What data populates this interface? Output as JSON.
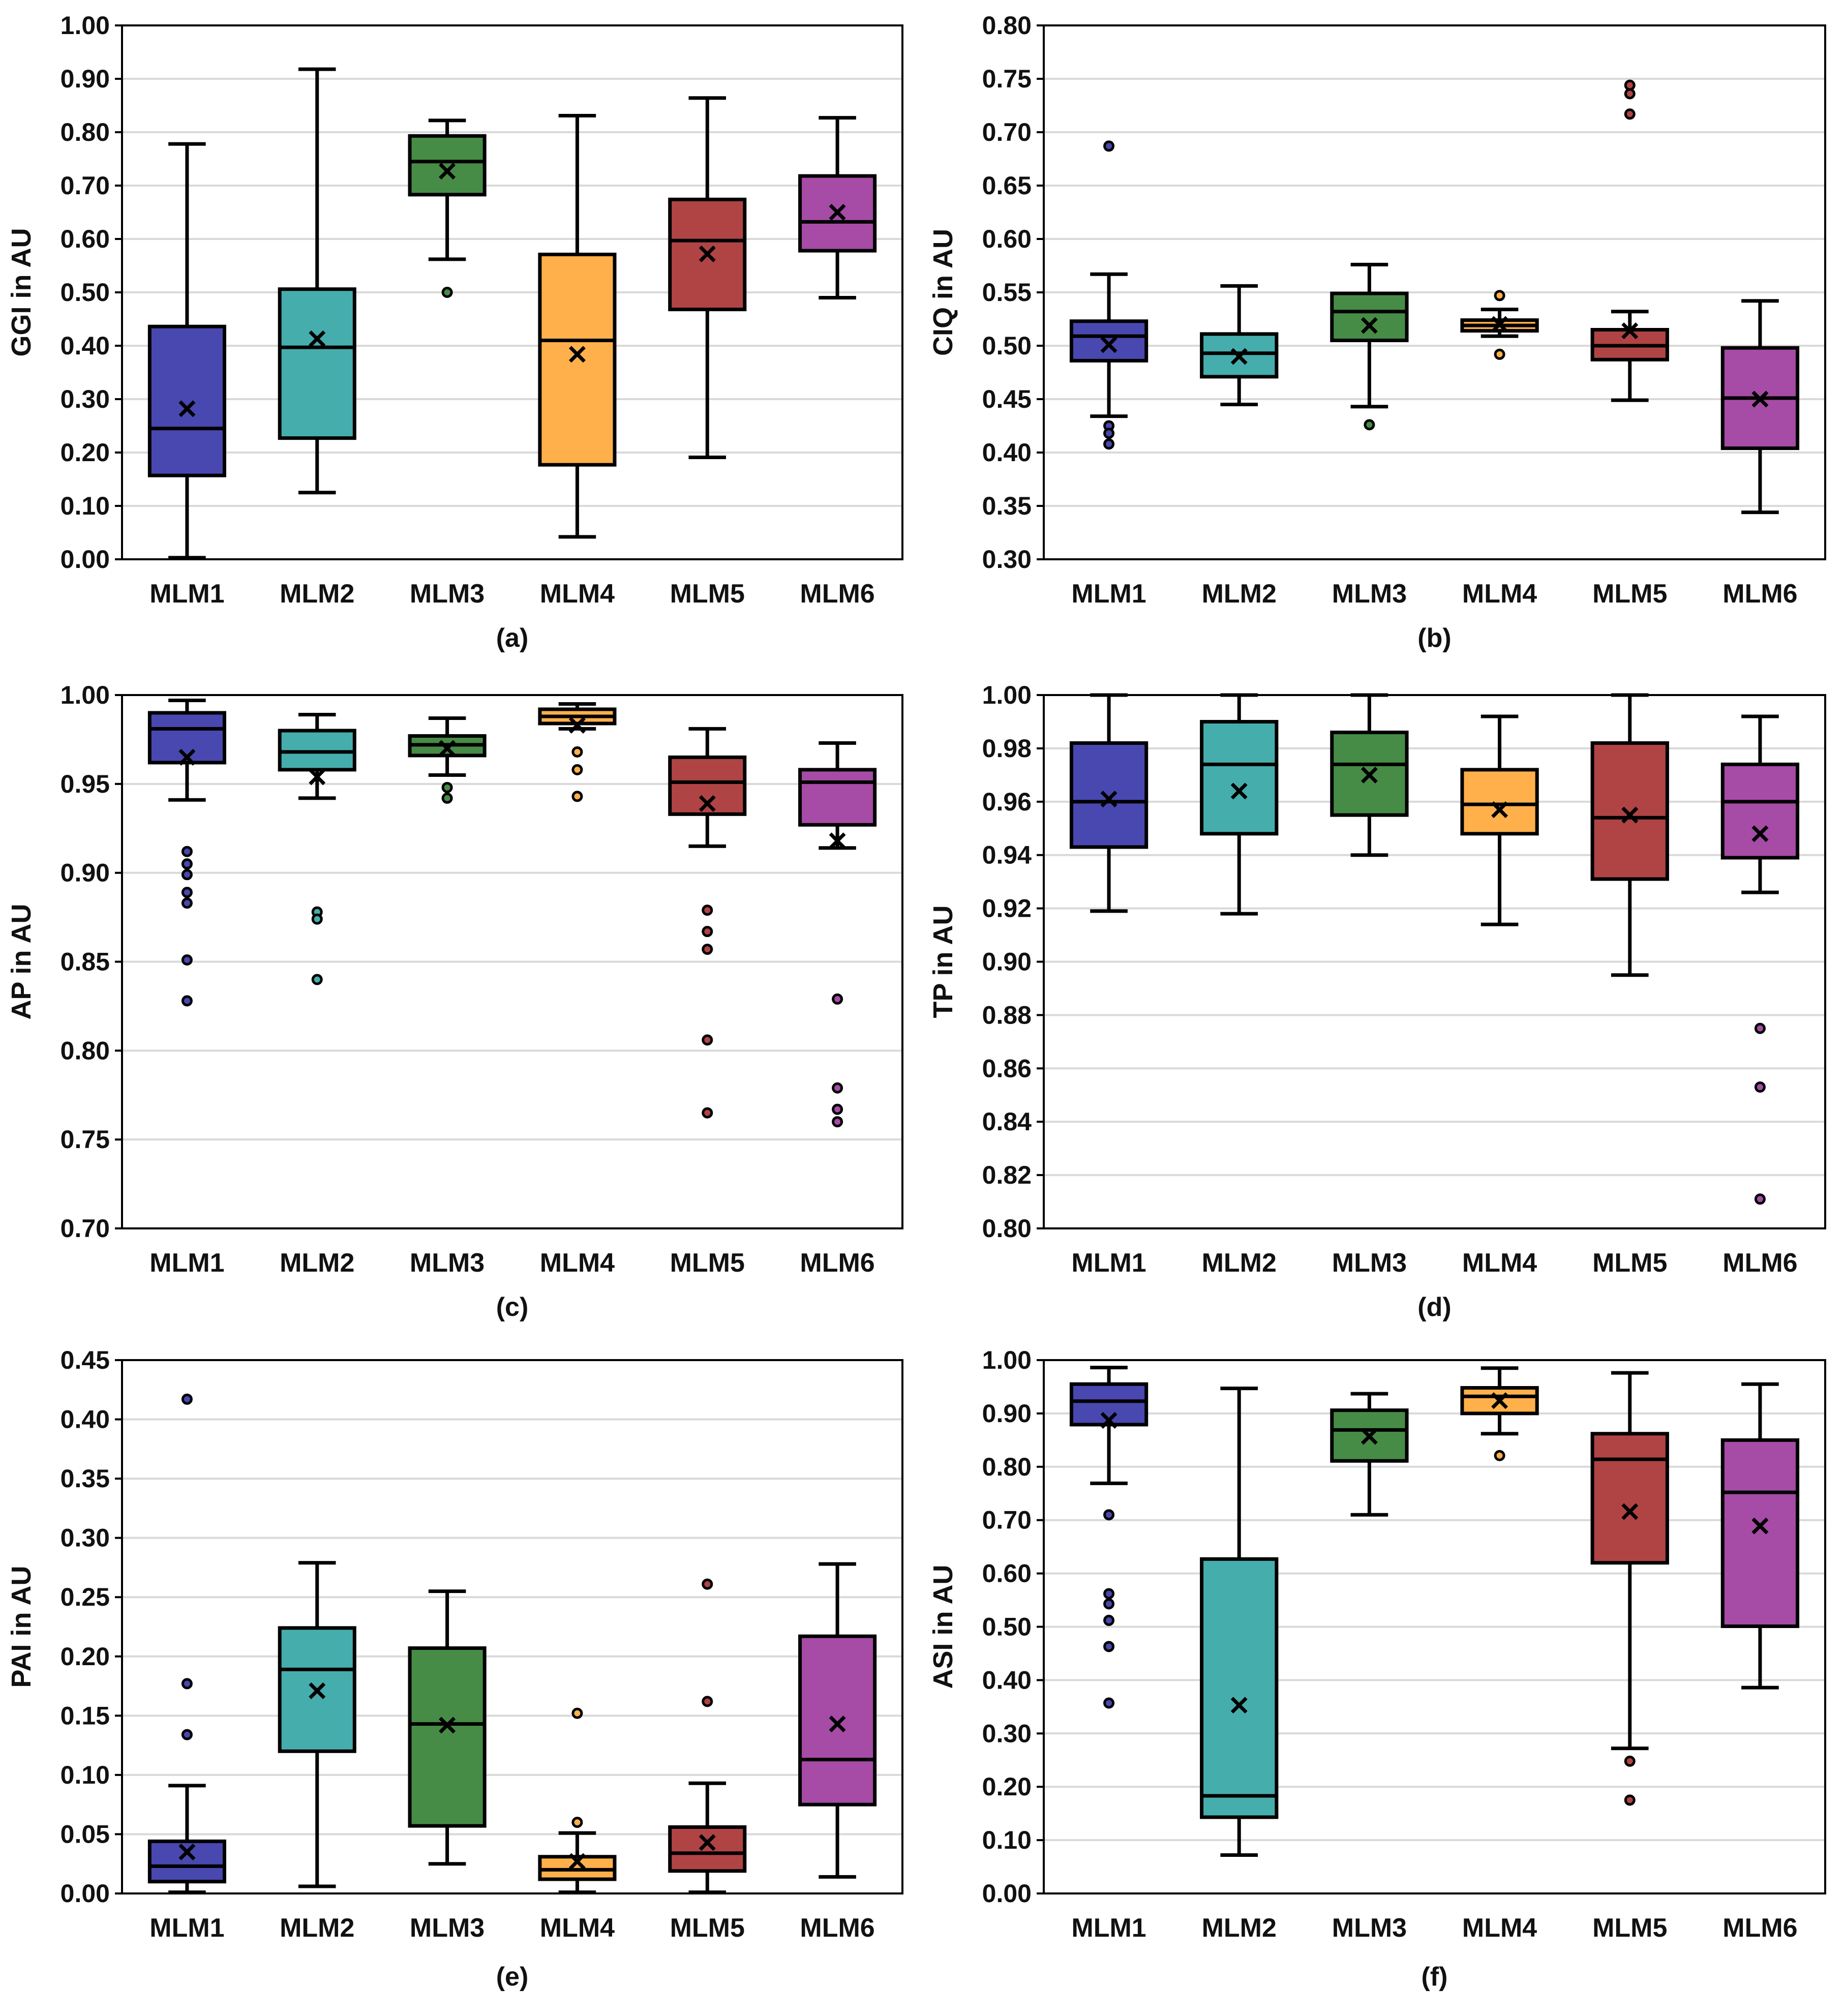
{
  "colors": [
    "#4848B0",
    "#46ADAD",
    "#468C46",
    "#FFB04A",
    "#B04444",
    "#A64BA6"
  ],
  "chart_data": [
    {
      "type": "box",
      "panel_label": "(a)",
      "ylabel": "GGI in AU",
      "ylim": [
        0,
        1.0
      ],
      "yticks": [
        0.0,
        0.1,
        0.2,
        0.3,
        0.4,
        0.5,
        0.6,
        0.7,
        0.8,
        0.9,
        1.0
      ],
      "ytick_labels": [
        "0.00",
        "0.10",
        "0.20",
        "0.30",
        "0.40",
        "0.50",
        "0.60",
        "0.70",
        "0.80",
        "0.90",
        "1.00"
      ],
      "categories": [
        "MLM1",
        "MLM2",
        "MLM3",
        "MLM4",
        "MLM5",
        "MLM6"
      ],
      "boxes": [
        {
          "whisker_low": 0.003,
          "q1": 0.157,
          "median": 0.245,
          "q3": 0.436,
          "whisker_high": 0.778,
          "mean": 0.282,
          "outliers": []
        },
        {
          "whisker_low": 0.125,
          "q1": 0.227,
          "median": 0.397,
          "q3": 0.506,
          "whisker_high": 0.918,
          "mean": 0.413,
          "outliers": []
        },
        {
          "whisker_low": 0.562,
          "q1": 0.683,
          "median": 0.745,
          "q3": 0.793,
          "whisker_high": 0.822,
          "mean": 0.727,
          "outliers": [
            0.5
          ]
        },
        {
          "whisker_low": 0.042,
          "q1": 0.177,
          "median": 0.41,
          "q3": 0.571,
          "whisker_high": 0.831,
          "mean": 0.384,
          "outliers": []
        },
        {
          "whisker_low": 0.191,
          "q1": 0.468,
          "median": 0.597,
          "q3": 0.674,
          "whisker_high": 0.864,
          "mean": 0.572,
          "outliers": []
        },
        {
          "whisker_low": 0.49,
          "q1": 0.578,
          "median": 0.632,
          "q3": 0.718,
          "whisker_high": 0.827,
          "mean": 0.65,
          "outliers": []
        }
      ]
    },
    {
      "type": "box",
      "panel_label": "(b)",
      "ylabel": "CIQ in AU",
      "ylim": [
        0.3,
        0.8
      ],
      "yticks": [
        0.3,
        0.35,
        0.4,
        0.45,
        0.5,
        0.55,
        0.6,
        0.65,
        0.7,
        0.75,
        0.8
      ],
      "ytick_labels": [
        "0.30",
        "0.35",
        "0.40",
        "0.45",
        "0.50",
        "0.55",
        "0.60",
        "0.65",
        "0.70",
        "0.75",
        "0.80"
      ],
      "categories": [
        "MLM1",
        "MLM2",
        "MLM3",
        "MLM4",
        "MLM5",
        "MLM6"
      ],
      "boxes": [
        {
          "whisker_low": 0.434,
          "q1": 0.486,
          "median": 0.509,
          "q3": 0.523,
          "whisker_high": 0.567,
          "mean": 0.501,
          "outliers": [
            0.425,
            0.418,
            0.408,
            0.687
          ]
        },
        {
          "whisker_low": 0.445,
          "q1": 0.471,
          "median": 0.493,
          "q3": 0.511,
          "whisker_high": 0.556,
          "mean": 0.49,
          "outliers": []
        },
        {
          "whisker_low": 0.443,
          "q1": 0.505,
          "median": 0.532,
          "q3": 0.549,
          "whisker_high": 0.576,
          "mean": 0.519,
          "outliers": [
            0.426
          ]
        },
        {
          "whisker_low": 0.509,
          "q1": 0.514,
          "median": 0.519,
          "q3": 0.524,
          "whisker_high": 0.534,
          "mean": 0.52,
          "outliers": [
            0.547,
            0.492
          ]
        },
        {
          "whisker_low": 0.449,
          "q1": 0.487,
          "median": 0.5,
          "q3": 0.515,
          "whisker_high": 0.532,
          "mean": 0.514,
          "outliers": [
            0.744,
            0.736,
            0.717
          ]
        },
        {
          "whisker_low": 0.344,
          "q1": 0.404,
          "median": 0.451,
          "q3": 0.498,
          "whisker_high": 0.542,
          "mean": 0.45,
          "outliers": []
        }
      ]
    },
    {
      "type": "box",
      "panel_label": "(c)",
      "ylabel": "AP in AU",
      "ylim": [
        0.7,
        1.0
      ],
      "yticks": [
        0.7,
        0.75,
        0.8,
        0.85,
        0.9,
        0.95,
        1.0
      ],
      "ytick_labels": [
        "0.70",
        "0.75",
        "0.80",
        "0.85",
        "0.90",
        "0.95",
        "1.00"
      ],
      "categories": [
        "MLM1",
        "MLM2",
        "MLM3",
        "MLM4",
        "MLM5",
        "MLM6"
      ],
      "boxes": [
        {
          "whisker_low": 0.941,
          "q1": 0.962,
          "median": 0.981,
          "q3": 0.99,
          "whisker_high": 0.997,
          "mean": 0.965,
          "outliers": [
            0.912,
            0.905,
            0.899,
            0.889,
            0.883,
            0.851,
            0.828
          ]
        },
        {
          "whisker_low": 0.942,
          "q1": 0.958,
          "median": 0.968,
          "q3": 0.98,
          "whisker_high": 0.989,
          "mean": 0.954,
          "outliers": [
            0.878,
            0.874,
            0.84
          ]
        },
        {
          "whisker_low": 0.955,
          "q1": 0.966,
          "median": 0.972,
          "q3": 0.977,
          "whisker_high": 0.987,
          "mean": 0.97,
          "outliers": [
            0.948,
            0.942
          ]
        },
        {
          "whisker_low": 0.981,
          "q1": 0.984,
          "median": 0.988,
          "q3": 0.992,
          "whisker_high": 0.995,
          "mean": 0.983,
          "outliers": [
            0.968,
            0.958,
            0.943
          ]
        },
        {
          "whisker_low": 0.915,
          "q1": 0.933,
          "median": 0.951,
          "q3": 0.965,
          "whisker_high": 0.981,
          "mean": 0.939,
          "outliers": [
            0.879,
            0.867,
            0.857,
            0.806,
            0.765
          ]
        },
        {
          "whisker_low": 0.914,
          "q1": 0.927,
          "median": 0.951,
          "q3": 0.958,
          "whisker_high": 0.973,
          "mean": 0.918,
          "outliers": [
            0.829,
            0.779,
            0.767,
            0.76
          ]
        }
      ]
    },
    {
      "type": "box",
      "panel_label": "(d)",
      "ylabel": "TP in AU",
      "ylim": [
        0.8,
        1.0
      ],
      "yticks": [
        0.8,
        0.82,
        0.84,
        0.86,
        0.88,
        0.9,
        0.92,
        0.94,
        0.96,
        0.98,
        1.0
      ],
      "ytick_labels": [
        "0.80",
        "0.82",
        "0.84",
        "0.86",
        "0.88",
        "0.90",
        "0.92",
        "0.94",
        "0.96",
        "0.98",
        "1.00"
      ],
      "categories": [
        "MLM1",
        "MLM2",
        "MLM3",
        "MLM4",
        "MLM5",
        "MLM6"
      ],
      "boxes": [
        {
          "whisker_low": 0.919,
          "q1": 0.943,
          "median": 0.96,
          "q3": 0.982,
          "whisker_high": 1.0,
          "mean": 0.961,
          "outliers": []
        },
        {
          "whisker_low": 0.918,
          "q1": 0.948,
          "median": 0.974,
          "q3": 0.99,
          "whisker_high": 1.0,
          "mean": 0.964,
          "outliers": []
        },
        {
          "whisker_low": 0.94,
          "q1": 0.955,
          "median": 0.974,
          "q3": 0.986,
          "whisker_high": 1.0,
          "mean": 0.97,
          "outliers": []
        },
        {
          "whisker_low": 0.914,
          "q1": 0.948,
          "median": 0.959,
          "q3": 0.972,
          "whisker_high": 0.992,
          "mean": 0.957,
          "outliers": []
        },
        {
          "whisker_low": 0.895,
          "q1": 0.931,
          "median": 0.954,
          "q3": 0.982,
          "whisker_high": 1.0,
          "mean": 0.955,
          "outliers": []
        },
        {
          "whisker_low": 0.926,
          "q1": 0.939,
          "median": 0.96,
          "q3": 0.974,
          "whisker_high": 0.992,
          "mean": 0.948,
          "outliers": [
            0.875,
            0.853,
            0.811
          ]
        }
      ]
    },
    {
      "type": "box",
      "panel_label": "(e)",
      "ylabel": "PAI in AU",
      "ylim": [
        0,
        0.45
      ],
      "yticks": [
        0.0,
        0.05,
        0.1,
        0.15,
        0.2,
        0.25,
        0.3,
        0.35,
        0.4,
        0.45
      ],
      "ytick_labels": [
        "0.00",
        "0.05",
        "0.10",
        "0.15",
        "0.20",
        "0.25",
        "0.30",
        "0.35",
        "0.40",
        "0.45"
      ],
      "categories": [
        "MLM1",
        "MLM2",
        "MLM3",
        "MLM4",
        "MLM5",
        "MLM6"
      ],
      "boxes": [
        {
          "whisker_low": 0.001,
          "q1": 0.01,
          "median": 0.023,
          "q3": 0.044,
          "whisker_high": 0.091,
          "mean": 0.035,
          "outliers": [
            0.134,
            0.177,
            0.417
          ]
        },
        {
          "whisker_low": 0.006,
          "q1": 0.12,
          "median": 0.189,
          "q3": 0.224,
          "whisker_high": 0.279,
          "mean": 0.171,
          "outliers": []
        },
        {
          "whisker_low": 0.025,
          "q1": 0.057,
          "median": 0.143,
          "q3": 0.207,
          "whisker_high": 0.255,
          "mean": 0.142,
          "outliers": []
        },
        {
          "whisker_low": 0.001,
          "q1": 0.012,
          "median": 0.02,
          "q3": 0.031,
          "whisker_high": 0.051,
          "mean": 0.027,
          "outliers": [
            0.06,
            0.152
          ]
        },
        {
          "whisker_low": 0.001,
          "q1": 0.019,
          "median": 0.034,
          "q3": 0.056,
          "whisker_high": 0.093,
          "mean": 0.043,
          "outliers": [
            0.162,
            0.261
          ]
        },
        {
          "whisker_low": 0.014,
          "q1": 0.075,
          "median": 0.113,
          "q3": 0.217,
          "whisker_high": 0.278,
          "mean": 0.143,
          "outliers": []
        }
      ]
    },
    {
      "type": "box",
      "panel_label": "(f)",
      "ylabel": "ASI in AU",
      "ylim": [
        0,
        1.0
      ],
      "yticks": [
        0.0,
        0.1,
        0.2,
        0.3,
        0.4,
        0.5,
        0.6,
        0.7,
        0.8,
        0.9,
        1.0
      ],
      "ytick_labels": [
        "0.00",
        "0.10",
        "0.20",
        "0.30",
        "0.40",
        "0.50",
        "0.60",
        "0.70",
        "0.80",
        "0.90",
        "1.00"
      ],
      "categories": [
        "MLM1",
        "MLM2",
        "MLM3",
        "MLM4",
        "MLM5",
        "MLM6"
      ],
      "boxes": [
        {
          "whisker_low": 0.769,
          "q1": 0.879,
          "median": 0.923,
          "q3": 0.955,
          "whisker_high": 0.986,
          "mean": 0.887,
          "outliers": [
            0.71,
            0.562,
            0.543,
            0.512,
            0.463,
            0.357
          ]
        },
        {
          "whisker_low": 0.072,
          "q1": 0.143,
          "median": 0.183,
          "q3": 0.627,
          "whisker_high": 0.947,
          "mean": 0.353,
          "outliers": []
        },
        {
          "whisker_low": 0.71,
          "q1": 0.811,
          "median": 0.869,
          "q3": 0.906,
          "whisker_high": 0.937,
          "mean": 0.857,
          "outliers": []
        },
        {
          "whisker_low": 0.862,
          "q1": 0.9,
          "median": 0.932,
          "q3": 0.948,
          "whisker_high": 0.985,
          "mean": 0.924,
          "outliers": [
            0.821
          ]
        },
        {
          "whisker_low": 0.272,
          "q1": 0.62,
          "median": 0.814,
          "q3": 0.862,
          "whisker_high": 0.976,
          "mean": 0.716,
          "outliers": [
            0.248,
            0.175
          ]
        },
        {
          "whisker_low": 0.386,
          "q1": 0.501,
          "median": 0.752,
          "q3": 0.85,
          "whisker_high": 0.955,
          "mean": 0.689,
          "outliers": []
        }
      ]
    }
  ]
}
